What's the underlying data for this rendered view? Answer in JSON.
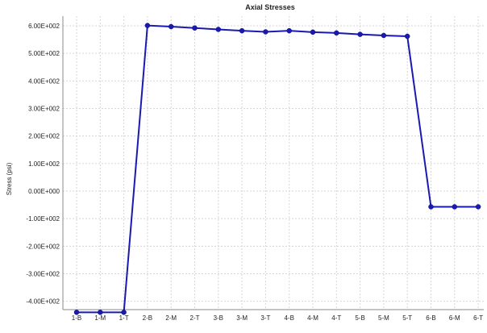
{
  "chart_data": {
    "type": "line",
    "title": "Axial Stresses",
    "xlabel": "",
    "ylabel": "Stress (psi)",
    "categories": [
      "1-B",
      "1-M",
      "1-T",
      "2-B",
      "2-M",
      "2-T",
      "3-B",
      "3-M",
      "3-T",
      "4-B",
      "4-M",
      "4-T",
      "5-B",
      "5-M",
      "5-T",
      "6-B",
      "6-M",
      "6-T"
    ],
    "series": [
      {
        "values": [
          -440,
          -440,
          -440,
          601,
          597,
          592,
          587,
          582,
          578,
          582,
          577,
          574,
          569,
          565,
          562,
          -57,
          -57,
          -57
        ],
        "color": "#1a1ab0"
      }
    ],
    "ylim": [
      -420,
      600
    ],
    "yticks": [
      600,
      500,
      400,
      300,
      200,
      100,
      0,
      -100,
      -200,
      -300,
      -400
    ],
    "ytick_labels": [
      "6.00E+002",
      "5.00E+002",
      "4.00E+002",
      "3.00E+002",
      "2.00E+002",
      "1.00E+002",
      "0.00E+000",
      "-1.00E+002",
      "-2.00E+002",
      "-3.00E+002",
      "-4.00E+002"
    ],
    "grid": true,
    "legend": "none"
  }
}
